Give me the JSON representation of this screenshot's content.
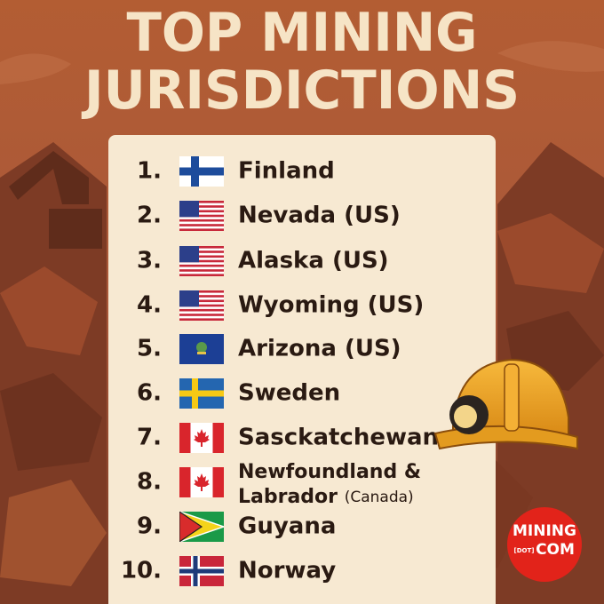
{
  "title": {
    "line1": "TOP MINING",
    "line2": "JURISDICTIONS"
  },
  "list": [
    {
      "rank": "1.",
      "name": "Finland"
    },
    {
      "rank": "2.",
      "name": "Nevada (US)"
    },
    {
      "rank": "3.",
      "name": "Alaska (US)"
    },
    {
      "rank": "4.",
      "name": "Wyoming (US)"
    },
    {
      "rank": "5.",
      "name": "Arizona (US)"
    },
    {
      "rank": "6.",
      "name": "Sweden"
    },
    {
      "rank": "7.",
      "name": "Sasckatchewan"
    },
    {
      "rank": "8.",
      "name_line1": "Newfoundland &",
      "name_line2": "Labrador",
      "name_note": "(Canada)"
    },
    {
      "rank": "9.",
      "name": "Guyana"
    },
    {
      "rank": "10.",
      "name": "Norway"
    }
  ],
  "logo": {
    "top": "MINING",
    "middle": "[DOT]",
    "bottom": "COM"
  }
}
